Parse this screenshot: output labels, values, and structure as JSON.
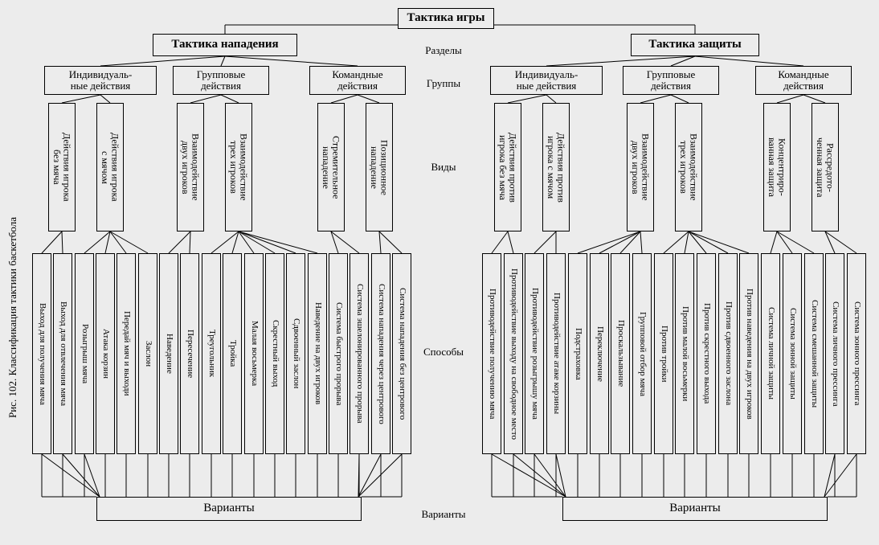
{
  "meta": {
    "caption": "Рис. 102. Классификация тактики баскетбола",
    "background": "#ececec",
    "border_color": "#000000",
    "font_family": "Times New Roman"
  },
  "row_labels": {
    "sections": "Разделы",
    "groups": "Группы",
    "types": "Виды",
    "methods": "Способы",
    "variants": "Варианты"
  },
  "root": {
    "label": "Тактика игры"
  },
  "sections": [
    {
      "id": "attack",
      "label": "Тактика нападения"
    },
    {
      "id": "defense",
      "label": "Тактика защиты"
    }
  ],
  "groups": {
    "attack": [
      {
        "id": "a_ind",
        "label": "Индивидуаль-\nные действия"
      },
      {
        "id": "a_grp",
        "label": "Групповые\nдействия"
      },
      {
        "id": "a_team",
        "label": "Командные\nдействия"
      }
    ],
    "defense": [
      {
        "id": "d_ind",
        "label": "Индивидуаль-\nные действия"
      },
      {
        "id": "d_grp",
        "label": "Групповые\nдействия"
      },
      {
        "id": "d_team",
        "label": "Командные\nдействия"
      }
    ]
  },
  "types": {
    "a_ind": [
      {
        "id": "t1",
        "label": "Действия игрока\nбез мяча"
      },
      {
        "id": "t2",
        "label": "Действия игрока\nс мячом"
      }
    ],
    "a_grp": [
      {
        "id": "t3",
        "label": "Взаимодействие\nдвух игроков"
      },
      {
        "id": "t4",
        "label": "Взаимодействие\nтрех игроков"
      }
    ],
    "a_team": [
      {
        "id": "t5",
        "label": "Стремительное\nнападение"
      },
      {
        "id": "t6",
        "label": "Позиционное\nнападение"
      }
    ],
    "d_ind": [
      {
        "id": "t7",
        "label": "Действия против\nигрока без мяча"
      },
      {
        "id": "t8",
        "label": "Действия против\nигрока с мячом"
      }
    ],
    "d_grp": [
      {
        "id": "t9",
        "label": "Взаимодействие\nдвух игроков"
      },
      {
        "id": "t10",
        "label": "Взаимодействие\nтрех игроков"
      }
    ],
    "d_team": [
      {
        "id": "t11",
        "label": "Концентриро-\nванная защита"
      },
      {
        "id": "t12",
        "label": "Рассредото-\nченная защита"
      }
    ]
  },
  "methods": {
    "t1": [
      "Выход для получения мяча",
      "Выход для отвлечения мяча"
    ],
    "t2": [
      "Розыгрыш мяча",
      "Атака корзин",
      "Передай мяч и выходи",
      "Заслон"
    ],
    "t3": [
      "Наведение",
      "Пересечение"
    ],
    "t4": [
      "Треугольник",
      "Тройка",
      "Малая восьмерка",
      "Скрестный выход",
      "Сдвоенный заслон",
      "Наведение на двух игроков"
    ],
    "t5": [
      "Система быстрого прорыва",
      "Система эшелонированного прорыва"
    ],
    "t6": [
      "Система нападения через центрового",
      "Система нападения без центрового"
    ],
    "t7": [
      "Противодействие получению мяча",
      "Противодействие выходу на свободное место"
    ],
    "t8": [
      "Противодействие розыгрышу мяча",
      "Противодействие атаке корзины"
    ],
    "t9": [
      "Подстраховка",
      "Переключение",
      "Проскальзывание",
      "Групповой отбор мяча"
    ],
    "t10": [
      "Против тройки",
      "Против малой восьмерки",
      "Против скрестного выхода",
      "Против сдвоенного заслона",
      "Против наведения на двух игроков"
    ],
    "t11": [
      "Система личной защиты",
      "Система зонной защиты",
      "Система смешанной защиты"
    ],
    "t12": [
      "Система личного прессинга",
      "Система зонного прессинга"
    ]
  },
  "variants_label": "Варианты"
}
